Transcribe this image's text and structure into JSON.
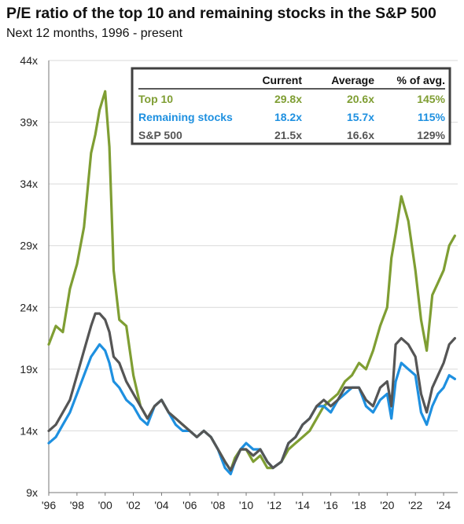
{
  "title": "P/E ratio of the top 10 and remaining stocks in the S&P 500",
  "subtitle": "Next 12 months, 1996 - present",
  "colors": {
    "top10": "#7f9e33",
    "remaining": "#1e90e0",
    "sp500": "#555555"
  },
  "table": {
    "headers": [
      "",
      "Current",
      "Average",
      "% of avg."
    ],
    "rows": [
      {
        "name": "Top 10",
        "current": "29.8x",
        "average": "20.6x",
        "pct": "145%",
        "color": "#7f9e33"
      },
      {
        "name": "Remaining stocks",
        "current": "18.2x",
        "average": "15.7x",
        "pct": "115%",
        "color": "#1e90e0"
      },
      {
        "name": "S&P 500",
        "current": "21.5x",
        "average": "16.6x",
        "pct": "129%",
        "color": "#555555"
      }
    ]
  },
  "chart_data": {
    "type": "line",
    "title": "P/E ratio of the top 10 and remaining stocks in the S&P 500",
    "subtitle": "Next 12 months, 1996 - present",
    "xlabel": "",
    "ylabel": "",
    "xlim": [
      1996,
      2025
    ],
    "ylim": [
      9,
      44
    ],
    "yticks": [
      9,
      14,
      19,
      24,
      29,
      34,
      39,
      44
    ],
    "ytick_labels": [
      "9x",
      "14x",
      "19x",
      "24x",
      "29x",
      "34x",
      "39x",
      "44x"
    ],
    "xticks": [
      1996,
      1998,
      2000,
      2002,
      2004,
      2006,
      2008,
      2010,
      2012,
      2014,
      2016,
      2018,
      2020,
      2022,
      2024
    ],
    "xtick_labels": [
      "'96",
      "'98",
      "'00",
      "'02",
      "'04",
      "'06",
      "'08",
      "'10",
      "'12",
      "'14",
      "'16",
      "'18",
      "'20",
      "'22",
      "'24"
    ],
    "grid": "horizontal",
    "x": [
      1996.0,
      1996.5,
      1997.0,
      1997.5,
      1998.0,
      1998.5,
      1999.0,
      1999.3,
      1999.6,
      2000.0,
      2000.3,
      2000.6,
      2001.0,
      2001.5,
      2002.0,
      2002.5,
      2003.0,
      2003.5,
      2004.0,
      2004.5,
      2005.0,
      2005.5,
      2006.0,
      2006.5,
      2007.0,
      2007.5,
      2008.0,
      2008.5,
      2008.9,
      2009.2,
      2009.6,
      2010.0,
      2010.5,
      2011.0,
      2011.5,
      2011.9,
      2012.5,
      2013.0,
      2013.5,
      2014.0,
      2014.5,
      2015.0,
      2015.5,
      2016.0,
      2016.5,
      2017.0,
      2017.5,
      2018.0,
      2018.5,
      2019.0,
      2019.5,
      2020.0,
      2020.3,
      2020.6,
      2021.0,
      2021.5,
      2022.0,
      2022.4,
      2022.8,
      2023.2,
      2023.6,
      2024.0,
      2024.4,
      2024.8
    ],
    "series": [
      {
        "name": "Top 10",
        "key": "top10",
        "values": [
          21.0,
          22.5,
          22.0,
          25.5,
          27.5,
          30.5,
          36.5,
          38.0,
          40.0,
          41.5,
          37.0,
          27.0,
          23.0,
          22.5,
          18.5,
          16.0,
          15.0,
          16.0,
          16.5,
          15.5,
          15.0,
          14.5,
          14.0,
          13.5,
          14.0,
          13.5,
          12.5,
          11.5,
          10.8,
          11.8,
          12.5,
          12.5,
          11.5,
          12.0,
          11.0,
          11.0,
          11.5,
          12.5,
          13.0,
          13.5,
          14.0,
          15.0,
          16.0,
          16.5,
          17.0,
          18.0,
          18.5,
          19.5,
          19.0,
          20.5,
          22.5,
          24.0,
          28.0,
          30.0,
          33.0,
          31.0,
          27.0,
          23.0,
          20.5,
          25.0,
          26.0,
          27.0,
          29.0,
          29.8
        ]
      },
      {
        "name": "Remaining stocks",
        "key": "remaining",
        "values": [
          13.0,
          13.5,
          14.5,
          15.5,
          17.0,
          18.5,
          20.0,
          20.5,
          21.0,
          20.5,
          19.5,
          18.0,
          17.5,
          16.5,
          16.0,
          15.0,
          14.5,
          16.0,
          16.5,
          15.5,
          14.5,
          14.0,
          14.0,
          13.5,
          14.0,
          13.5,
          12.5,
          11.0,
          10.5,
          11.5,
          12.5,
          13.0,
          12.5,
          12.5,
          11.5,
          11.0,
          11.5,
          13.0,
          13.5,
          14.5,
          15.0,
          16.0,
          16.0,
          15.5,
          16.5,
          17.0,
          17.5,
          17.5,
          16.0,
          15.5,
          16.5,
          17.0,
          15.0,
          18.0,
          19.5,
          19.0,
          18.5,
          15.5,
          14.5,
          16.0,
          17.0,
          17.5,
          18.5,
          18.2
        ]
      },
      {
        "name": "S&P 500",
        "key": "sp500",
        "values": [
          14.0,
          14.5,
          15.5,
          16.5,
          18.5,
          20.5,
          22.5,
          23.5,
          23.5,
          23.0,
          22.0,
          20.0,
          19.5,
          18.0,
          17.0,
          16.0,
          15.0,
          16.0,
          16.5,
          15.5,
          15.0,
          14.5,
          14.0,
          13.5,
          14.0,
          13.5,
          12.5,
          11.5,
          10.8,
          11.5,
          12.5,
          12.5,
          12.0,
          12.5,
          11.5,
          11.0,
          11.5,
          13.0,
          13.5,
          14.5,
          15.0,
          16.0,
          16.5,
          16.0,
          16.5,
          17.5,
          17.5,
          17.5,
          16.5,
          16.0,
          17.5,
          18.0,
          16.0,
          21.0,
          21.5,
          21.0,
          20.0,
          17.0,
          15.5,
          17.5,
          18.5,
          19.5,
          21.0,
          21.5
        ]
      }
    ]
  }
}
